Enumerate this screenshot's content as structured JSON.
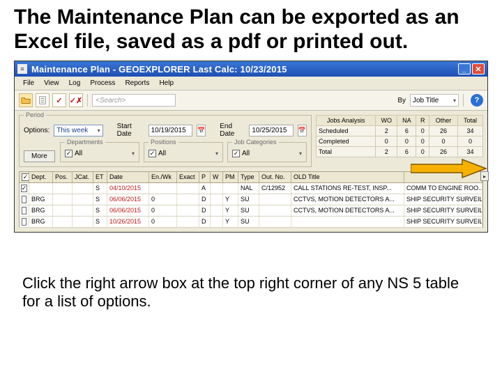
{
  "heading": "The Maintenance Plan can be exported as an Excel file, saved as a pdf or printed out.",
  "caption": "Click the right arrow box at the top right corner of any NS 5 table for a list of options.",
  "window": {
    "title": "Maintenance Plan - GEOEXPLORER  Last Calc: 10/23/2015",
    "menu": [
      "File",
      "View",
      "Log",
      "Process",
      "Reports",
      "Help"
    ],
    "search_placeholder": "<Search>",
    "by_label": "By",
    "by_value": "Job Title",
    "period": {
      "legend": "Period",
      "options_label": "Options:",
      "options_value": "This week",
      "start_label": "Start Date",
      "start_value": "10/19/2015",
      "end_label": "End Date",
      "end_value": "10/25/2015"
    },
    "departments": {
      "legend": "Departments",
      "all": "All"
    },
    "positions": {
      "legend": "Positions",
      "all": "All"
    },
    "jobcats": {
      "legend": "Job Categories",
      "all": "All"
    },
    "more": "More",
    "stats": {
      "header": [
        "Jobs Analysis",
        "WO",
        "NA",
        "R",
        "Other",
        "Total"
      ],
      "rows": [
        [
          "Scheduled",
          "2",
          "6",
          "0",
          "26",
          "34"
        ],
        [
          "Completed",
          "0",
          "0",
          "0",
          "0",
          "0"
        ],
        [
          "Total",
          "2",
          "6",
          "0",
          "26",
          "34"
        ]
      ]
    },
    "grid": {
      "columns": [
        "",
        "Dept.",
        "Pos.",
        "JCat.",
        "ET",
        "Date",
        "En./Wk",
        "Exact",
        "P",
        "W",
        "PM",
        "Type",
        "Out. No.",
        "OLD Title",
        ""
      ],
      "rows": [
        {
          "chk": true,
          "dept": "",
          "pos": "",
          "jcat": "",
          "et": "S",
          "date": "04/10/2015",
          "enwk": "",
          "exact": "",
          "p": "A",
          "w": "",
          "pm": "",
          "type": "NAL",
          "outno": "C/12952",
          "title": "CALL STATIONS RE-TEST, INSP...",
          "last": "COMM TO ENGINE ROO..."
        },
        {
          "chk": false,
          "dept": "BRG",
          "pos": "",
          "jcat": "",
          "et": "S",
          "date": "06/06/2015",
          "enwk": "0",
          "exact": "",
          "p": "D",
          "w": "",
          "pm": "Y",
          "type": "SU",
          "outno": "",
          "title": "CCTVS, MOTION DETECTORS A...",
          "last": "SHIP SECURITY SURVEILLANCE ..."
        },
        {
          "chk": false,
          "dept": "BRG",
          "pos": "",
          "jcat": "",
          "et": "S",
          "date": "06/06/2015",
          "enwk": "0",
          "exact": "",
          "p": "D",
          "w": "",
          "pm": "Y",
          "type": "SU",
          "outno": "",
          "title": "CCTVS, MOTION DETECTORS A...",
          "last": "SHIP SECURITY SURVEILLANCE ..."
        },
        {
          "chk": false,
          "dept": "BRG",
          "pos": "",
          "jcat": "",
          "et": "S",
          "date": "10/26/2015",
          "enwk": "0",
          "exact": "",
          "p": "D",
          "w": "",
          "pm": "Y",
          "type": "SU",
          "outno": "",
          "title": "",
          "last": "SHIP SECURITY SURVEILLANCE ..."
        }
      ]
    },
    "arrow_button": "▸"
  },
  "colors": {
    "titlebar_top": "#3b77d6",
    "titlebar_bottom": "#1e4fb3",
    "panel": "#ece9d8",
    "callout_fill": "#f6b100",
    "callout_stroke": "#7a5400"
  }
}
